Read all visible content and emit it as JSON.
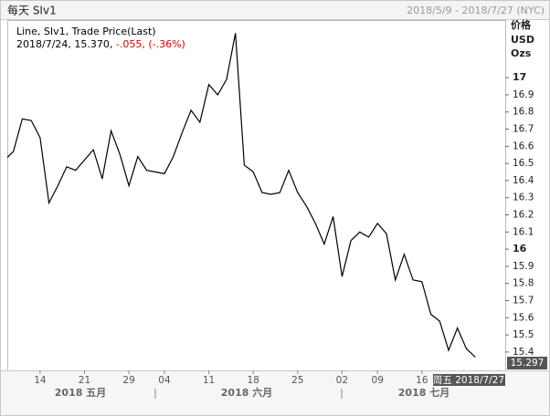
{
  "chart_data": {
    "type": "line",
    "title": "每天 SIv1",
    "date_range": "2018/5/9 - 2018/7/27 (NYC)",
    "legend": {
      "series_label": "Line, SIv1, Trade Price(Last)",
      "point": "2018/7/24, 15.370,",
      "change": "-.055, (-.36%)"
    },
    "axis_header": [
      "价格",
      "USD",
      "Ozs"
    ],
    "last_price_label": "15.297",
    "cursor_label": "周五 2018/7/27",
    "month_labels": [
      "2018 五月",
      "2018 六月",
      "2018 七月"
    ],
    "categories": [
      null,
      null,
      null,
      null,
      "14",
      null,
      null,
      null,
      null,
      "21",
      null,
      null,
      null,
      null,
      "29",
      null,
      null,
      null,
      "04",
      null,
      null,
      null,
      null,
      "11",
      null,
      null,
      null,
      null,
      "18",
      null,
      null,
      null,
      null,
      "25",
      null,
      null,
      null,
      null,
      "02",
      null,
      null,
      null,
      "09",
      null,
      null,
      null,
      null,
      "16",
      null,
      null,
      null,
      null,
      null,
      null,
      null,
      null,
      null
    ],
    "series": [
      {
        "name": "SIv1",
        "color": "#000000",
        "values": [
          16.52,
          16.57,
          16.76,
          16.75,
          16.65,
          16.27,
          16.37,
          16.48,
          16.46,
          16.52,
          16.58,
          16.41,
          16.69,
          16.55,
          16.37,
          16.54,
          16.46,
          16.45,
          16.44,
          16.54,
          16.68,
          16.81,
          16.74,
          16.96,
          16.9,
          16.99,
          17.26,
          16.49,
          16.45,
          16.33,
          16.32,
          16.33,
          16.46,
          16.33,
          16.25,
          16.15,
          16.03,
          16.19,
          15.84,
          16.05,
          16.1,
          16.07,
          16.15,
          16.09,
          15.82,
          15.97,
          15.82,
          15.81,
          15.62,
          15.58,
          15.41,
          15.54,
          15.42,
          15.37,
          null,
          null,
          null
        ]
      }
    ],
    "ylim": [
      15.293,
      17.336
    ],
    "yticks": [
      15.4,
      15.5,
      15.6,
      15.7,
      15.8,
      15.9,
      16,
      16.1,
      16.2,
      16.3,
      16.4,
      16.5,
      16.6,
      16.7,
      16.8,
      16.9,
      17
    ]
  }
}
